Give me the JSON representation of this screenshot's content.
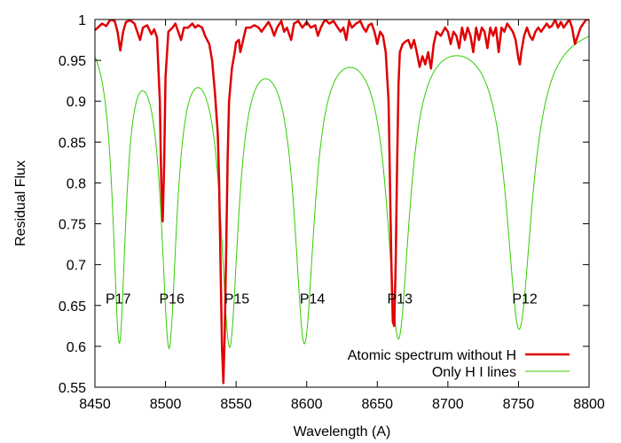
{
  "chart_data": {
    "type": "line",
    "title": "",
    "xlabel": "Wavelength (A)",
    "ylabel": "Residual Flux",
    "xlim": [
      8450,
      8800
    ],
    "ylim": [
      0.55,
      1.0
    ],
    "xticks": [
      8450,
      8500,
      8550,
      8600,
      8650,
      8700,
      8750,
      8800
    ],
    "yticks": [
      0.55,
      0.6,
      0.65,
      0.7,
      0.75,
      0.8,
      0.85,
      0.9,
      0.95,
      1
    ],
    "ytick_labels": [
      "0.55",
      "0.6",
      "0.65",
      "0.7",
      "0.75",
      "0.8",
      "0.85",
      "0.9",
      "0.95",
      "1"
    ],
    "grid": false,
    "legend_position": "bottom-right",
    "series": [
      {
        "name": "Atomic spectrum without H",
        "color": "#e00000",
        "style": "thick",
        "points": [
          [
            8450,
            0.987
          ],
          [
            8452,
            0.99
          ],
          [
            8455,
            0.995
          ],
          [
            8458,
            0.992
          ],
          [
            8461,
            1.0
          ],
          [
            8464,
            0.998
          ],
          [
            8466,
            0.985
          ],
          [
            8468,
            0.962
          ],
          [
            8470,
            0.985
          ],
          [
            8472,
            0.997
          ],
          [
            8475,
            0.999
          ],
          [
            8478,
            0.995
          ],
          [
            8480,
            0.985
          ],
          [
            8482,
            0.975
          ],
          [
            8484,
            0.99
          ],
          [
            8487,
            0.993
          ],
          [
            8490,
            0.982
          ],
          [
            8492,
            0.988
          ],
          [
            8494,
            0.978
          ],
          [
            8496,
            0.9
          ],
          [
            8497,
            0.8
          ],
          [
            8498,
            0.753
          ],
          [
            8499,
            0.82
          ],
          [
            8500,
            0.93
          ],
          [
            8502,
            0.985
          ],
          [
            8505,
            0.99
          ],
          [
            8507,
            0.995
          ],
          [
            8509,
            0.985
          ],
          [
            8511,
            0.975
          ],
          [
            8513,
            0.99
          ],
          [
            8516,
            0.99
          ],
          [
            8519,
            0.995
          ],
          [
            8521,
            0.99
          ],
          [
            8523,
            0.993
          ],
          [
            8526,
            0.99
          ],
          [
            8528,
            0.98
          ],
          [
            8531,
            0.97
          ],
          [
            8533,
            0.95
          ],
          [
            8535,
            0.91
          ],
          [
            8537,
            0.86
          ],
          [
            8538,
            0.8
          ],
          [
            8539,
            0.7
          ],
          [
            8540,
            0.6
          ],
          [
            8541,
            0.555
          ],
          [
            8542,
            0.62
          ],
          [
            8543,
            0.72
          ],
          [
            8544,
            0.83
          ],
          [
            8545,
            0.9
          ],
          [
            8547,
            0.94
          ],
          [
            8549,
            0.96
          ],
          [
            8550,
            0.972
          ],
          [
            8552,
            0.975
          ],
          [
            8553,
            0.96
          ],
          [
            8555,
            0.975
          ],
          [
            8557,
            0.99
          ],
          [
            8560,
            0.99
          ],
          [
            8563,
            0.993
          ],
          [
            8566,
            0.99
          ],
          [
            8568,
            0.985
          ],
          [
            8570,
            0.99
          ],
          [
            8573,
            0.997
          ],
          [
            8575,
            0.99
          ],
          [
            8577,
            0.98
          ],
          [
            8579,
            0.99
          ],
          [
            8582,
            0.998
          ],
          [
            8584,
            0.985
          ],
          [
            8586,
            0.99
          ],
          [
            8589,
            0.975
          ],
          [
            8591,
            0.995
          ],
          [
            8594,
            0.998
          ],
          [
            8597,
            0.99
          ],
          [
            8600,
            0.997
          ],
          [
            8603,
            0.99
          ],
          [
            8606,
            0.993
          ],
          [
            8608,
            0.98
          ],
          [
            8610,
            0.99
          ],
          [
            8613,
            1.0
          ],
          [
            8616,
            0.995
          ],
          [
            8619,
            0.998
          ],
          [
            8622,
            0.99
          ],
          [
            8624,
            0.985
          ],
          [
            8626,
            0.99
          ],
          [
            8628,
            0.975
          ],
          [
            8630,
            0.998
          ],
          [
            8632,
            0.99
          ],
          [
            8635,
            0.995
          ],
          [
            8638,
            0.998
          ],
          [
            8640,
            0.99
          ],
          [
            8642,
            0.985
          ],
          [
            8644,
            0.993
          ],
          [
            8646,
            0.995
          ],
          [
            8648,
            0.985
          ],
          [
            8650,
            0.97
          ],
          [
            8652,
            0.985
          ],
          [
            8654,
            0.98
          ],
          [
            8656,
            0.96
          ],
          [
            8658,
            0.9
          ],
          [
            8659,
            0.8
          ],
          [
            8660,
            0.7
          ],
          [
            8661,
            0.63
          ],
          [
            8662,
            0.625
          ],
          [
            8663,
            0.7
          ],
          [
            8664,
            0.82
          ],
          [
            8665,
            0.92
          ],
          [
            8666,
            0.96
          ],
          [
            8668,
            0.97
          ],
          [
            8670,
            0.973
          ],
          [
            8672,
            0.975
          ],
          [
            8674,
            0.965
          ],
          [
            8676,
            0.975
          ],
          [
            8678,
            0.96
          ],
          [
            8680,
            0.942
          ],
          [
            8682,
            0.955
          ],
          [
            8684,
            0.945
          ],
          [
            8686,
            0.96
          ],
          [
            8688,
            0.94
          ],
          [
            8690,
            0.97
          ],
          [
            8692,
            0.985
          ],
          [
            8695,
            0.98
          ],
          [
            8698,
            0.99
          ],
          [
            8700,
            0.985
          ],
          [
            8702,
            0.97
          ],
          [
            8704,
            0.985
          ],
          [
            8706,
            0.98
          ],
          [
            8708,
            0.965
          ],
          [
            8710,
            0.99
          ],
          [
            8712,
            0.975
          ],
          [
            8714,
            0.99
          ],
          [
            8716,
            0.98
          ],
          [
            8718,
            0.96
          ],
          [
            8720,
            0.99
          ],
          [
            8722,
            0.975
          ],
          [
            8724,
            0.99
          ],
          [
            8726,
            0.985
          ],
          [
            8728,
            0.965
          ],
          [
            8730,
            0.99
          ],
          [
            8732,
            0.98
          ],
          [
            8734,
            0.99
          ],
          [
            8736,
            0.96
          ],
          [
            8738,
            0.99
          ],
          [
            8740,
            0.985
          ],
          [
            8742,
            0.995
          ],
          [
            8744,
            0.99
          ],
          [
            8746,
            0.985
          ],
          [
            8748,
            0.975
          ],
          [
            8750,
            0.952
          ],
          [
            8751,
            0.945
          ],
          [
            8752,
            0.96
          ],
          [
            8754,
            0.98
          ],
          [
            8756,
            0.99
          ],
          [
            8758,
            0.98
          ],
          [
            8760,
            0.975
          ],
          [
            8762,
            0.985
          ],
          [
            8764,
            0.99
          ],
          [
            8766,
            0.985
          ],
          [
            8768,
            0.99
          ],
          [
            8770,
            0.995
          ],
          [
            8772,
            0.99
          ],
          [
            8774,
            0.993
          ],
          [
            8776,
            1.0
          ],
          [
            8778,
            0.99
          ],
          [
            8780,
            0.997
          ],
          [
            8782,
            0.99
          ],
          [
            8784,
            0.995
          ],
          [
            8786,
            1.0
          ],
          [
            8788,
            0.99
          ],
          [
            8790,
            0.97
          ],
          [
            8792,
            0.98
          ],
          [
            8794,
            0.99
          ],
          [
            8796,
            0.995
          ],
          [
            8798,
            1.0
          ],
          [
            8800,
            1.0
          ]
        ]
      },
      {
        "name": "Only H I lines",
        "color": "#33cc00",
        "style": "thin",
        "lines": [
          {
            "center": 8467.3,
            "depth": 0.385,
            "width": 5.5
          },
          {
            "center": 8502.5,
            "depth": 0.387,
            "width": 6.5
          },
          {
            "center": 8545.4,
            "depth": 0.387,
            "width": 7.5
          },
          {
            "center": 8598.4,
            "depth": 0.385,
            "width": 8.5
          },
          {
            "center": 8665.0,
            "depth": 0.382,
            "width": 9.5
          },
          {
            "center": 8750.5,
            "depth": 0.375,
            "width": 11
          }
        ]
      }
    ],
    "annotations": [
      {
        "text": "P17",
        "x": 8466.5,
        "y": 0.659
      },
      {
        "text": "P16",
        "x": 8504.5,
        "y": 0.659
      },
      {
        "text": "P15",
        "x": 8550.5,
        "y": 0.659
      },
      {
        "text": "P14",
        "x": 8604,
        "y": 0.659
      },
      {
        "text": "P13",
        "x": 8666,
        "y": 0.659
      },
      {
        "text": "P12",
        "x": 8754.5,
        "y": 0.659
      }
    ]
  }
}
